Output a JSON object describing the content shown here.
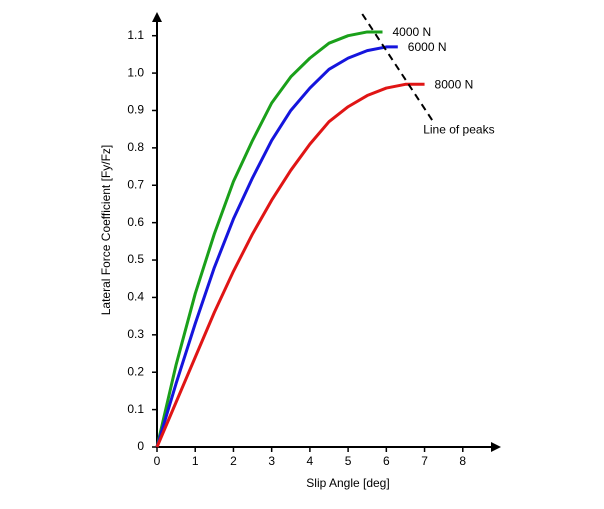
{
  "chart_data": {
    "type": "line",
    "x_label": "Slip Angle [deg]",
    "y_label": "Lateral Force Coefficient [Fy/Fz]",
    "xlim": [
      0,
      9
    ],
    "ylim": [
      0,
      1.15
    ],
    "xticks": [
      0,
      1,
      2,
      3,
      4,
      5,
      6,
      7,
      8
    ],
    "yticks": [
      0,
      0.1,
      0.2,
      0.3,
      0.4,
      0.5,
      0.6,
      0.7,
      0.8,
      0.9,
      {
        "value": 1,
        "label": "1.0"
      },
      1.1
    ],
    "series": [
      {
        "name": "4000 N",
        "color": "#1aa01a",
        "x": [
          0,
          0.5,
          1,
          1.5,
          2,
          2.5,
          3,
          3.5,
          4,
          4.5,
          5,
          5.5,
          5.9
        ],
        "values": [
          0,
          0.22,
          0.41,
          0.57,
          0.71,
          0.82,
          0.92,
          0.99,
          1.04,
          1.08,
          1.1,
          1.11,
          1.11
        ]
      },
      {
        "name": "6000 N",
        "color": "#1515dd",
        "x": [
          0,
          0.5,
          1,
          1.5,
          2,
          2.5,
          3,
          3.5,
          4,
          4.5,
          5,
          5.5,
          6,
          6.3
        ],
        "values": [
          0,
          0.17,
          0.33,
          0.48,
          0.61,
          0.72,
          0.82,
          0.9,
          0.96,
          1.01,
          1.04,
          1.06,
          1.07,
          1.07
        ]
      },
      {
        "name": "8000 N",
        "color": "#e01515",
        "x": [
          0,
          0.5,
          1,
          1.5,
          2,
          2.5,
          3,
          3.5,
          4,
          4.5,
          5,
          5.5,
          6,
          6.5,
          7
        ],
        "values": [
          0,
          0.12,
          0.24,
          0.36,
          0.47,
          0.57,
          0.66,
          0.74,
          0.81,
          0.87,
          0.91,
          0.94,
          0.96,
          0.97,
          0.97
        ]
      }
    ],
    "peak_line": {
      "label": "Line of peaks",
      "x": [
        5.37,
        7.2
      ],
      "values": [
        1.158,
        0.874
      ]
    }
  }
}
